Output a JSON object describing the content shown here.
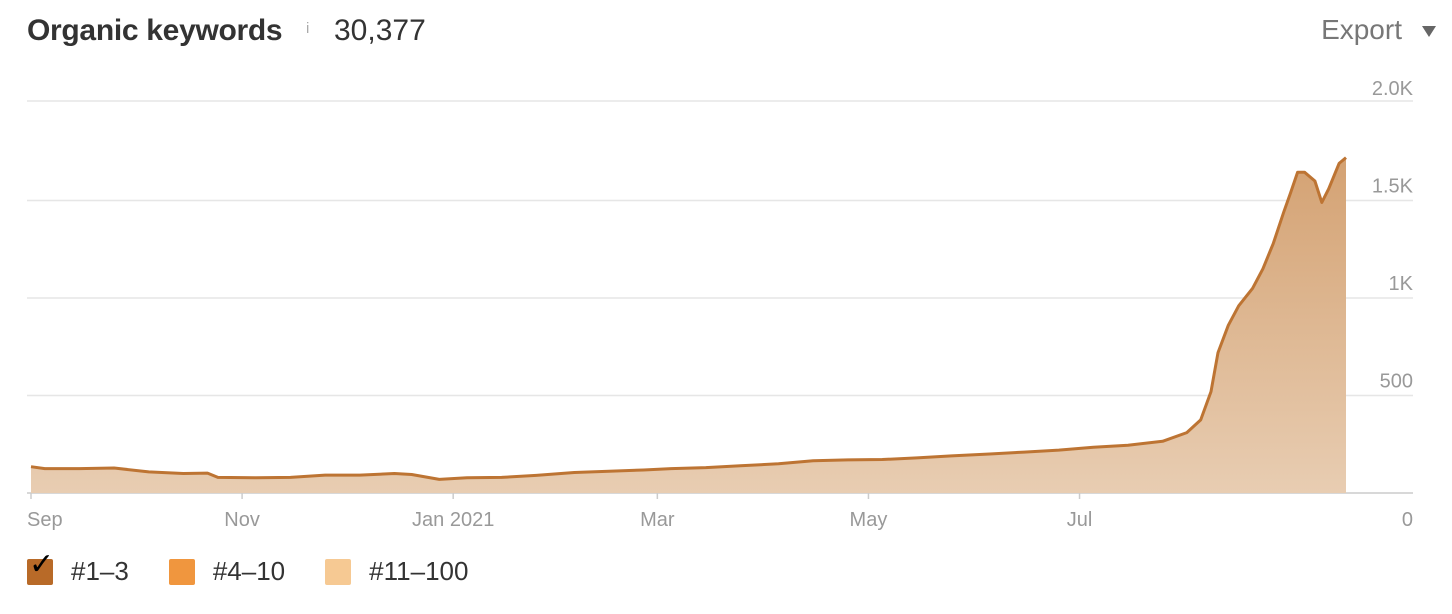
{
  "header": {
    "title": "Organic keywords",
    "info_icon": "i",
    "total": "30,377",
    "export_label": "Export"
  },
  "legend": [
    {
      "label": "#1–3",
      "color": "#b86a28",
      "checked": true
    },
    {
      "label": "#4–10",
      "color": "#f0963e",
      "checked": false
    },
    {
      "label": "#11–100",
      "color": "#f6c993",
      "checked": false
    }
  ],
  "chart_data": {
    "type": "area",
    "x_tick_labels": [
      "Sep",
      "Nov",
      "Jan 2021",
      "Mar",
      "May",
      "Jul"
    ],
    "y_tick_labels": [
      "0",
      "500",
      "1K",
      "1.5K",
      "2.0K"
    ],
    "ylim": [
      0,
      2000
    ],
    "grid": true,
    "series": [
      {
        "name": "#1–3",
        "color": "#bd7433",
        "fill": "#e8cdb2",
        "points": [
          [
            "2020-09-01",
            135
          ],
          [
            "2020-09-05",
            125
          ],
          [
            "2020-09-15",
            125
          ],
          [
            "2020-09-25",
            128
          ],
          [
            "2020-10-05",
            108
          ],
          [
            "2020-10-15",
            100
          ],
          [
            "2020-10-22",
            102
          ],
          [
            "2020-10-25",
            80
          ],
          [
            "2020-11-05",
            78
          ],
          [
            "2020-11-15",
            80
          ],
          [
            "2020-11-25",
            92
          ],
          [
            "2020-12-05",
            92
          ],
          [
            "2020-12-15",
            100
          ],
          [
            "2020-12-20",
            95
          ],
          [
            "2020-12-28",
            70
          ],
          [
            "2021-01-05",
            78
          ],
          [
            "2021-01-15",
            80
          ],
          [
            "2021-01-25",
            90
          ],
          [
            "2021-02-05",
            105
          ],
          [
            "2021-02-15",
            112
          ],
          [
            "2021-02-25",
            118
          ],
          [
            "2021-03-05",
            125
          ],
          [
            "2021-03-15",
            130
          ],
          [
            "2021-03-25",
            140
          ],
          [
            "2021-04-05",
            150
          ],
          [
            "2021-04-15",
            165
          ],
          [
            "2021-04-25",
            170
          ],
          [
            "2021-05-05",
            172
          ],
          [
            "2021-05-15",
            180
          ],
          [
            "2021-05-25",
            190
          ],
          [
            "2021-06-05",
            200
          ],
          [
            "2021-06-15",
            210
          ],
          [
            "2021-06-25",
            220
          ],
          [
            "2021-07-05",
            235
          ],
          [
            "2021-07-10",
            240
          ],
          [
            "2021-07-15",
            245
          ],
          [
            "2021-07-25",
            265
          ],
          [
            "2021-08-01",
            310
          ],
          [
            "2021-08-05",
            375
          ],
          [
            "2021-08-08",
            520
          ],
          [
            "2021-08-10",
            720
          ],
          [
            "2021-08-13",
            860
          ],
          [
            "2021-08-16",
            960
          ],
          [
            "2021-08-20",
            1050
          ],
          [
            "2021-08-23",
            1150
          ],
          [
            "2021-08-26",
            1280
          ],
          [
            "2021-08-29",
            1440
          ],
          [
            "2021-08-31",
            1540
          ],
          [
            "2021-09-02",
            1645
          ],
          [
            "2021-09-04",
            1645
          ],
          [
            "2021-09-07",
            1600
          ],
          [
            "2021-09-09",
            1490
          ],
          [
            "2021-09-11",
            1560
          ],
          [
            "2021-09-14",
            1690
          ],
          [
            "2021-09-16",
            1720
          ]
        ]
      }
    ]
  }
}
